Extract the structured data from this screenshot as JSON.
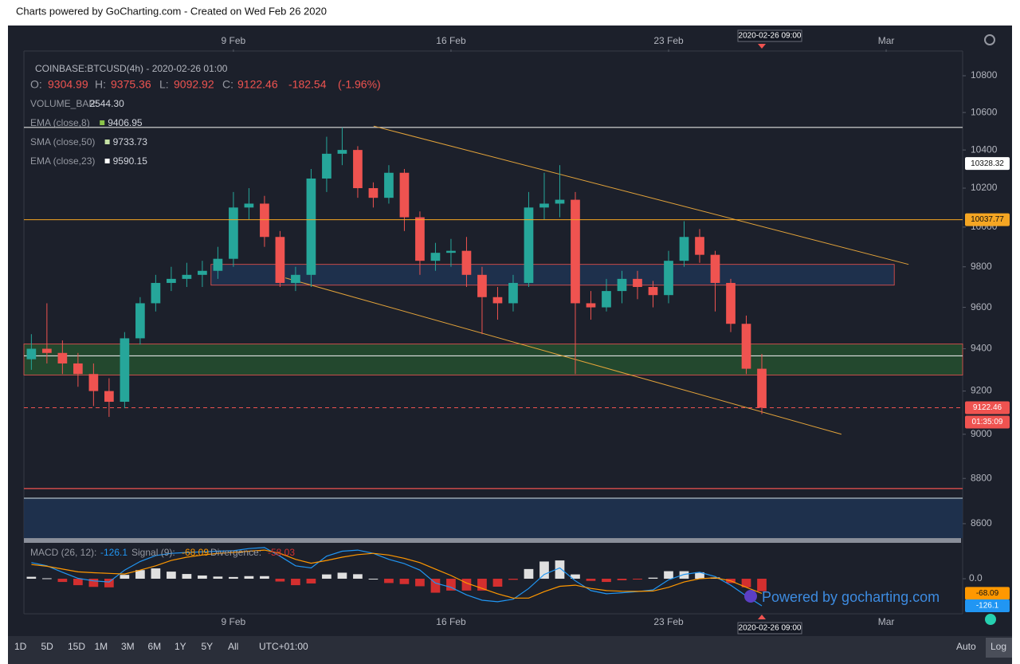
{
  "header": {
    "title": "Charts powered by GoCharting.com - Created on Wed Feb 26 2020"
  },
  "chart_data": {
    "type": "candlestick",
    "symbol": "COINBASE:BTCUSD(4h) - 2020-02-26 01:00",
    "ohlc_names": {
      "o": "O:",
      "h": "H:",
      "l": "L:",
      "c": "C:"
    },
    "change": -182.54,
    "change_pct": {
      "value": -1.96,
      "label": "(-1.96%)"
    },
    "indicators": [
      {
        "name": "VOLUME_BAR:",
        "value": 2544.3,
        "value_label": "2544.30"
      },
      {
        "name": "EMA (close,8)",
        "value": 9406.95,
        "color": "#8bc34a"
      },
      {
        "name": "SMA (close,50)",
        "value": 9733.73,
        "color": "#c5e1a5"
      },
      {
        "name": "EMA (close,23)",
        "value": 9590.15,
        "color": "#ffffff"
      }
    ],
    "x": [
      2.5,
      3,
      3.5,
      4,
      4.5,
      5,
      5.5,
      6,
      6.5,
      7,
      7.5,
      8,
      8.5,
      9,
      9.5,
      10,
      10.5,
      11,
      11.5,
      12,
      12.5,
      13,
      13.5,
      14,
      14.5,
      15,
      15.5,
      16,
      16.5,
      17,
      17.5,
      18,
      18.5,
      19,
      19.5,
      20,
      20.5,
      21,
      21.5,
      22,
      22.5,
      23,
      23.5,
      24,
      24.5,
      25,
      25.5,
      26
    ],
    "open": [
      9350,
      9400,
      9380,
      9330,
      9280,
      9200,
      9150,
      9450,
      9620,
      9720,
      9740,
      9760,
      9780,
      9840,
      10100,
      10120,
      9950,
      9720,
      9760,
      10250,
      10380,
      10400,
      10200,
      10150,
      10280,
      10050,
      9830,
      9870,
      9880,
      9760,
      9650,
      9620,
      9720,
      10100,
      10120,
      10140,
      9620,
      9600,
      9680,
      9740,
      9700,
      9660,
      9830,
      9950,
      9860,
      9720,
      9520,
      9304.99
    ],
    "high": [
      9470,
      9620,
      9440,
      9380,
      9330,
      9260,
      9480,
      9650,
      9760,
      9800,
      9820,
      9830,
      9900,
      10180,
      10200,
      10160,
      9980,
      9800,
      10300,
      10470,
      10520,
      10420,
      10230,
      10320,
      10300,
      10080,
      9920,
      9940,
      9950,
      9800,
      9700,
      9760,
      10180,
      10280,
      10320,
      10180,
      9680,
      9740,
      9780,
      9780,
      9730,
      9880,
      10030,
      9990,
      9880,
      9740,
      9560,
      9375.36
    ],
    "low": [
      9300,
      9330,
      9280,
      9220,
      9130,
      9080,
      9120,
      9420,
      9580,
      9680,
      9700,
      9700,
      9740,
      9800,
      10040,
      9900,
      9700,
      9680,
      9700,
      10180,
      10320,
      10150,
      10100,
      10120,
      9980,
      9760,
      9780,
      9800,
      9700,
      9470,
      9540,
      9580,
      9700,
      10040,
      10050,
      9280,
      9540,
      9580,
      9620,
      9640,
      9600,
      9620,
      9800,
      9820,
      9580,
      9480,
      9280,
      9092.92
    ],
    "close": [
      9400,
      9380,
      9330,
      9280,
      9200,
      9150,
      9450,
      9620,
      9720,
      9740,
      9760,
      9780,
      9840,
      10100,
      10120,
      9950,
      9720,
      9760,
      10250,
      10380,
      10400,
      10200,
      10150,
      10280,
      10050,
      9830,
      9870,
      9880,
      9760,
      9650,
      9620,
      9720,
      10100,
      10120,
      10140,
      9620,
      9600,
      9680,
      9740,
      9700,
      9660,
      9830,
      9950,
      9860,
      9720,
      9520,
      9305,
      9122.46
    ],
    "up_color": "#26a69a",
    "down_color": "#ef5350",
    "xlim": [
      2.26,
      32.46
    ],
    "xticks": [
      {
        "value": 9,
        "label": "9 Feb"
      },
      {
        "value": 16,
        "label": "16 Feb"
      },
      {
        "value": 23,
        "label": "23 Feb"
      },
      {
        "value": 30,
        "label": "Mar"
      }
    ],
    "ylim": [
      8520,
      11066
    ],
    "yticks": [
      8600,
      8800,
      9000,
      9200,
      9400,
      9600,
      9800,
      10000,
      10200,
      10400,
      10600,
      10800
    ],
    "log": true,
    "grid": false,
    "price_tags": [
      {
        "value": 10328.32,
        "color": "#ffffff"
      },
      {
        "value": 10037.77,
        "color": "#f5a623",
        "line": true
      }
    ],
    "countdown": "01:35:09",
    "hlines": [
      {
        "value": 10520,
        "color": "#e0e0e0"
      },
      {
        "value": 9366,
        "color": "#e0e0e0"
      },
      {
        "value": 8755,
        "color": "#ef5350"
      },
      {
        "value": 8712,
        "color": "#b0bec5"
      }
    ],
    "zones": [
      {
        "low": 9709,
        "high": 9812,
        "from": 8.28,
        "to": 30.26,
        "fill": "#1f3452",
        "stroke": "#ef5350"
      },
      {
        "low": 9275,
        "high": 9423,
        "fill": "#24502f",
        "stroke": "#ef5350"
      },
      {
        "low": 8537,
        "high": 8712,
        "fill": "#1f3452"
      }
    ],
    "trendlines": [
      {
        "x": [
          13.51,
          30.72
        ],
        "y": [
          10527,
          9812
        ],
        "color": "#e3a33a"
      },
      {
        "x": [
          10.67,
          28.56
        ],
        "y": [
          9745,
          9000
        ],
        "color": "#e3a33a"
      }
    ],
    "crosshair": {
      "x": 26,
      "label": "2020-02-26 09:00"
    },
    "macd": {
      "title": "MACD (26, 12):",
      "signal_title": "Signal (9):",
      "divergence_title": "Divergence:",
      "macd": [
        75,
        60,
        30,
        2,
        -10,
        -15,
        40,
        80,
        108,
        118,
        122,
        125,
        128,
        130,
        140,
        145,
        105,
        60,
        50,
        105,
        128,
        133,
        118,
        90,
        70,
        40,
        -20,
        -40,
        -75,
        -100,
        -107,
        -95,
        -45,
        20,
        50,
        -10,
        -55,
        -70,
        -65,
        -60,
        -52,
        -5,
        20,
        30,
        10,
        -30,
        -80,
        -126.1
      ],
      "signal": [
        66,
        58,
        45,
        32,
        28,
        25,
        22,
        40,
        60,
        85,
        100,
        110,
        118,
        122,
        128,
        133,
        118,
        90,
        72,
        85,
        100,
        112,
        118,
        110,
        95,
        75,
        45,
        15,
        -20,
        -45,
        -70,
        -90,
        -90,
        -60,
        -35,
        -30,
        -45,
        -55,
        -58,
        -59,
        -57,
        -40,
        -15,
        0,
        4,
        -10,
        -40,
        -68.09
      ],
      "divergence": [
        9,
        2,
        -15,
        -30,
        -38,
        -40,
        18,
        40,
        48,
        33,
        22,
        15,
        10,
        8,
        12,
        12,
        -13,
        -30,
        -22,
        20,
        28,
        21,
        0,
        -20,
        -25,
        -35,
        -65,
        -55,
        -55,
        -55,
        -37,
        -5,
        45,
        80,
        85,
        20,
        -10,
        -15,
        -7,
        -1,
        5,
        35,
        35,
        30,
        6,
        -20,
        -40,
        -58.03
      ],
      "macd_color": "#2196f3",
      "signal_color": "#ff9800",
      "pos_color": "#e0e0e0",
      "neg_color": "#d32f2f",
      "ylim": [
        -163,
        152
      ],
      "yticks": [
        {
          "value": 0,
          "label": "0.0"
        }
      ]
    },
    "watermark": "Powered by gocharting.com"
  },
  "toolbar": {
    "ranges": [
      "1D",
      "5D",
      "15D",
      "1M",
      "3M",
      "6M",
      "1Y",
      "5Y",
      "All"
    ],
    "timezone": "UTC+01:00",
    "auto": "Auto",
    "log": "Log"
  }
}
